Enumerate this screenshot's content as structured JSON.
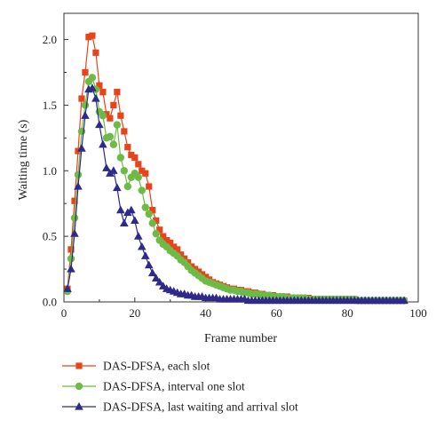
{
  "chart_data": {
    "type": "line",
    "xlabel": "Frame number",
    "ylabel": "Waiting time (s)",
    "xlim": [
      0,
      100
    ],
    "ylim": [
      0,
      2.2
    ],
    "xticks": [
      "0",
      "20",
      "40",
      "60",
      "80",
      "100"
    ],
    "yticks": [
      "0.0",
      "0.5",
      "1.0",
      "1.5",
      "2.0"
    ],
    "xtick_values": [
      0,
      20,
      40,
      60,
      80,
      100
    ],
    "ytick_values": [
      0,
      0.5,
      1.0,
      1.5,
      2.0
    ],
    "grid": false,
    "legend_position": "bottom",
    "series": [
      {
        "name": "DAS-DFSA, each slot",
        "color": "#e8441c",
        "marker": "square",
        "x": [
          1,
          2,
          3,
          4,
          5,
          6,
          7,
          8,
          9,
          10,
          11,
          12,
          13,
          14,
          15,
          16,
          17,
          18,
          19,
          20,
          21,
          22,
          23,
          24,
          25,
          26,
          27,
          28,
          29,
          30,
          31,
          32,
          33,
          34,
          35,
          36,
          37,
          38,
          39,
          40,
          41,
          42,
          43,
          44,
          45,
          46,
          47,
          48,
          49,
          50,
          51,
          52,
          53,
          54,
          55,
          56,
          57,
          58,
          59,
          60,
          61,
          62,
          63,
          64,
          65,
          66,
          67,
          68,
          69,
          70,
          71,
          72,
          73,
          74,
          75,
          76,
          77,
          78,
          79,
          80,
          81,
          82,
          83,
          84,
          85,
          86,
          87,
          88,
          89,
          90,
          91,
          92,
          93,
          94,
          95,
          96
        ],
        "y": [
          0.1,
          0.4,
          0.77,
          1.15,
          1.55,
          1.75,
          2.02,
          2.03,
          1.9,
          1.65,
          1.6,
          1.43,
          1.4,
          1.5,
          1.6,
          1.42,
          1.3,
          1.18,
          1.12,
          1.1,
          1.05,
          1.0,
          0.98,
          0.88,
          0.7,
          0.62,
          0.55,
          0.5,
          0.47,
          0.45,
          0.42,
          0.4,
          0.36,
          0.33,
          0.3,
          0.27,
          0.25,
          0.23,
          0.21,
          0.19,
          0.17,
          0.15,
          0.14,
          0.13,
          0.12,
          0.11,
          0.1,
          0.1,
          0.09,
          0.09,
          0.08,
          0.08,
          0.07,
          0.07,
          0.06,
          0.06,
          0.05,
          0.05,
          0.05,
          0.04,
          0.04,
          0.04,
          0.04,
          0.03,
          0.03,
          0.03,
          0.03,
          0.03,
          0.03,
          0.02,
          0.02,
          0.02,
          0.02,
          0.02,
          0.02,
          0.02,
          0.02,
          0.02,
          0.02,
          0.02,
          0.02,
          0.02,
          0.01,
          0.01,
          0.01,
          0.01,
          0.01,
          0.01,
          0.01,
          0.01,
          0.01,
          0.01,
          0.01,
          0.01,
          0.01,
          0.01
        ]
      },
      {
        "name": "DAS-DFSA, interval one slot",
        "color": "#6dbb45",
        "marker": "circle",
        "x": [
          1,
          2,
          3,
          4,
          5,
          6,
          7,
          8,
          9,
          10,
          11,
          12,
          13,
          14,
          15,
          16,
          17,
          18,
          19,
          20,
          21,
          22,
          23,
          24,
          25,
          26,
          27,
          28,
          29,
          30,
          31,
          32,
          33,
          34,
          35,
          36,
          37,
          38,
          39,
          40,
          41,
          42,
          43,
          44,
          45,
          46,
          47,
          48,
          49,
          50,
          51,
          52,
          53,
          54,
          55,
          56,
          57,
          58,
          59,
          60,
          61,
          62,
          63,
          64,
          65,
          66,
          67,
          68,
          69,
          70,
          71,
          72,
          73,
          74,
          75,
          76,
          77,
          78,
          79,
          80,
          81,
          82,
          83,
          84,
          85,
          86,
          87,
          88,
          89,
          90,
          91,
          92,
          93,
          94,
          95,
          96
        ],
        "y": [
          0.08,
          0.33,
          0.64,
          0.97,
          1.3,
          1.5,
          1.68,
          1.71,
          1.62,
          1.45,
          1.42,
          1.25,
          1.26,
          1.2,
          1.35,
          1.1,
          1.0,
          0.88,
          0.95,
          0.98,
          0.95,
          0.85,
          0.72,
          0.67,
          0.6,
          0.52,
          0.47,
          0.44,
          0.42,
          0.39,
          0.37,
          0.35,
          0.32,
          0.3,
          0.27,
          0.24,
          0.22,
          0.2,
          0.18,
          0.16,
          0.15,
          0.14,
          0.13,
          0.12,
          0.11,
          0.1,
          0.09,
          0.09,
          0.08,
          0.08,
          0.07,
          0.07,
          0.06,
          0.06,
          0.06,
          0.05,
          0.05,
          0.05,
          0.04,
          0.04,
          0.04,
          0.04,
          0.03,
          0.03,
          0.03,
          0.03,
          0.03,
          0.03,
          0.02,
          0.02,
          0.02,
          0.02,
          0.02,
          0.02,
          0.02,
          0.02,
          0.02,
          0.02,
          0.02,
          0.02,
          0.02,
          0.02,
          0.01,
          0.01,
          0.01,
          0.01,
          0.01,
          0.01,
          0.01,
          0.01,
          0.01,
          0.01,
          0.01,
          0.01,
          0.01,
          0.01
        ]
      },
      {
        "name": "DAS-DFSA, last waiting and arrival slot",
        "color": "#2e2a8a",
        "marker": "triangle",
        "x": [
          1,
          2,
          3,
          4,
          5,
          6,
          7,
          8,
          9,
          10,
          11,
          12,
          13,
          14,
          15,
          16,
          17,
          18,
          19,
          20,
          21,
          22,
          23,
          24,
          25,
          26,
          27,
          28,
          29,
          30,
          31,
          32,
          33,
          34,
          35,
          36,
          37,
          38,
          39,
          40,
          41,
          42,
          43,
          44,
          45,
          46,
          47,
          48,
          49,
          50,
          51,
          52,
          53,
          54,
          55,
          56,
          57,
          58,
          59,
          60,
          61,
          62,
          63,
          64,
          65,
          66,
          67,
          68,
          69,
          70,
          71,
          72,
          73,
          74,
          75,
          76,
          77,
          78,
          79,
          80,
          81,
          82,
          83,
          84,
          85,
          86,
          87,
          88,
          89,
          90,
          91,
          92,
          93,
          94,
          95,
          96
        ],
        "y": [
          0.1,
          0.25,
          0.52,
          0.88,
          1.17,
          1.42,
          1.62,
          1.63,
          1.55,
          1.35,
          1.2,
          1.02,
          0.98,
          1.0,
          0.87,
          0.7,
          0.6,
          0.68,
          0.7,
          0.62,
          0.5,
          0.42,
          0.35,
          0.28,
          0.22,
          0.18,
          0.15,
          0.12,
          0.1,
          0.09,
          0.08,
          0.07,
          0.06,
          0.06,
          0.05,
          0.05,
          0.04,
          0.04,
          0.04,
          0.03,
          0.03,
          0.03,
          0.03,
          0.02,
          0.02,
          0.02,
          0.02,
          0.02,
          0.02,
          0.02,
          0.02,
          0.01,
          0.01,
          0.01,
          0.01,
          0.01,
          0.01,
          0.01,
          0.01,
          0.01,
          0.01,
          0.01,
          0.01,
          0.01,
          0.01,
          0.01,
          0.01,
          0.01,
          0.01,
          0.01,
          0.01,
          0.01,
          0.01,
          0.01,
          0.01,
          0.01,
          0.01,
          0.01,
          0.01,
          0.01,
          0.01,
          0.01,
          0.01,
          0.01,
          0.01,
          0.01,
          0.01,
          0.01,
          0.01,
          0.01,
          0.01,
          0.01,
          0.01,
          0.01,
          0.01,
          0.01
        ]
      }
    ]
  }
}
